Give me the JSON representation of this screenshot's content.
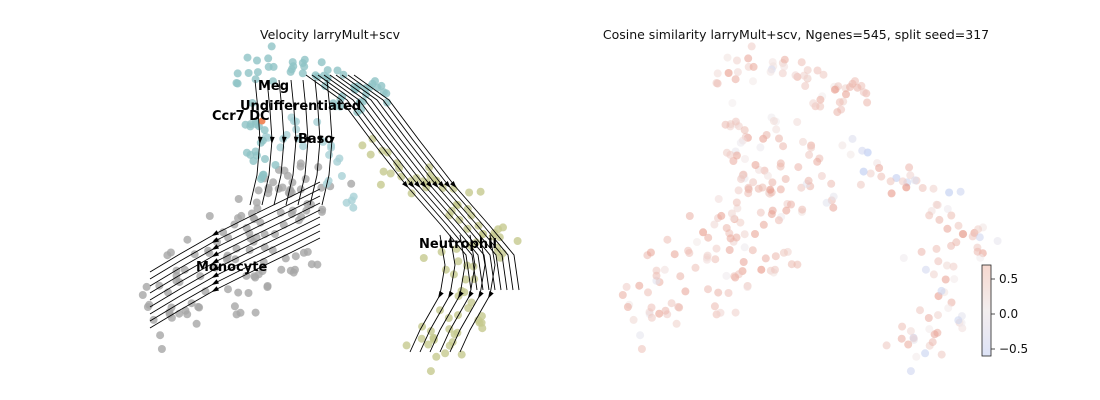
{
  "chart_data": [
    {
      "type": "scatter",
      "subtype": "embedding-with-velocity-streamlines",
      "title": "Velocity larryMult+scv",
      "axes_visible": false,
      "clusters": [
        {
          "name": "Meg",
          "color": "#8fc3c6"
        },
        {
          "name": "Undifferentiated",
          "color": "#8fc3c6"
        },
        {
          "name": "Ccr7 DC",
          "color": "#f08a5d"
        },
        {
          "name": "Baso",
          "color": "#a7d1d6"
        },
        {
          "name": "Neutrophil",
          "color": "#c5c98f"
        },
        {
          "name": "Monocyte",
          "color": "#a6a6a6"
        }
      ],
      "streamline_color": "#000000"
    },
    {
      "type": "scatter",
      "subtype": "embedding-colored-by-value",
      "title": "Cosine similarity larryMult+scv, Ngenes=545, split seed=317",
      "axes_visible": false,
      "colormap": "coolwarm",
      "colorbar": {
        "range": [
          -0.6,
          0.7
        ],
        "ticks": [
          0.5,
          0.0,
          -0.5
        ],
        "tick_labels": [
          "0.5",
          "0.0",
          "−0.5"
        ]
      },
      "point_value_range_observed": [
        -0.5,
        0.6
      ]
    }
  ]
}
